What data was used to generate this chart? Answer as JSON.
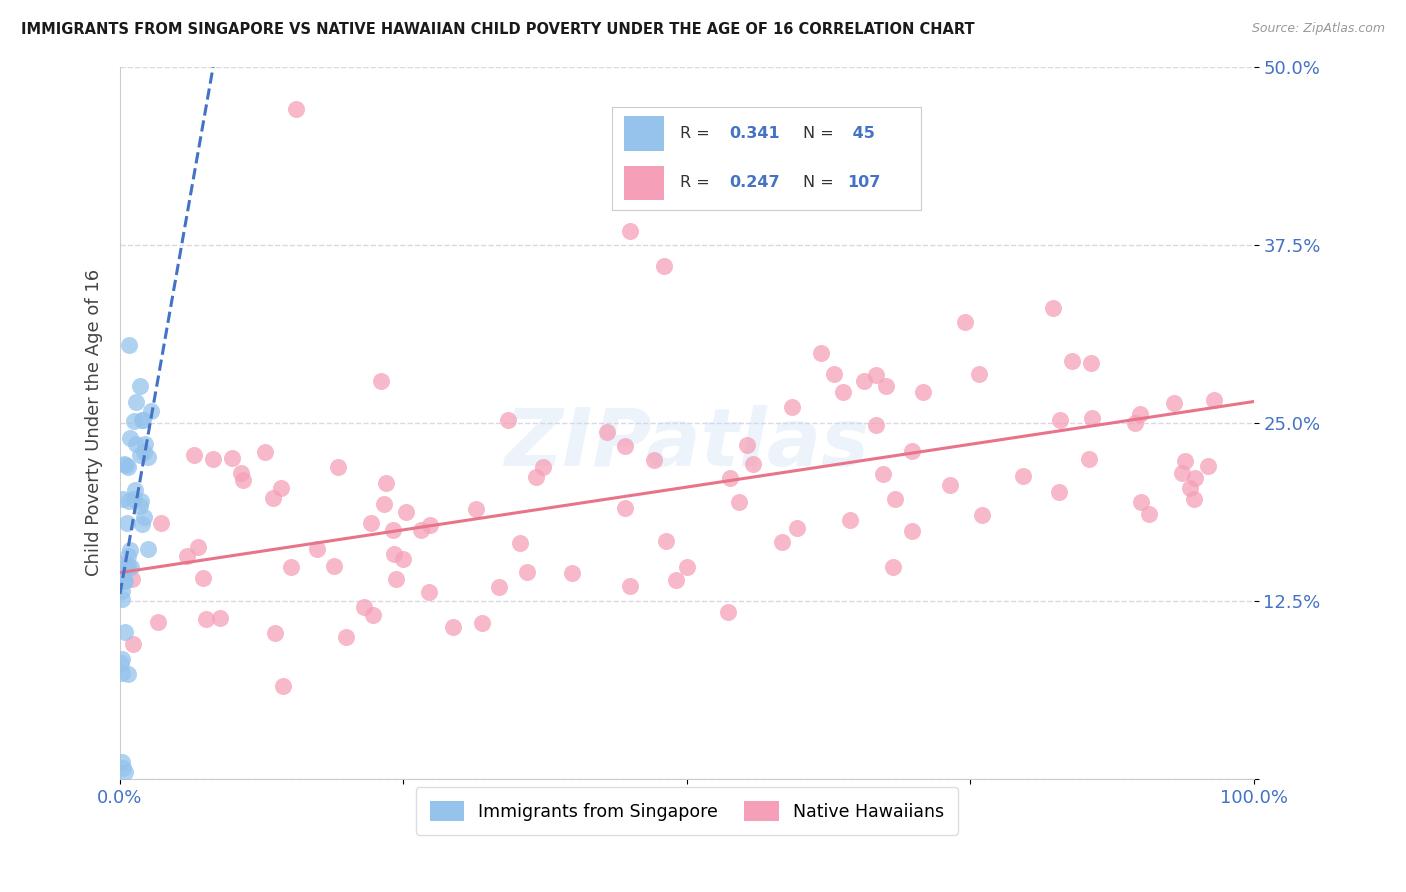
{
  "title": "IMMIGRANTS FROM SINGAPORE VS NATIVE HAWAIIAN CHILD POVERTY UNDER THE AGE OF 16 CORRELATION CHART",
  "source": "Source: ZipAtlas.com",
  "ylabel": "Child Poverty Under the Age of 16",
  "xlim": [
    0,
    1.0
  ],
  "ylim": [
    0,
    0.5
  ],
  "yticks": [
    0.0,
    0.125,
    0.25,
    0.375,
    0.5
  ],
  "ytick_labels": [
    "",
    "12.5%",
    "25.0%",
    "37.5%",
    "50.0%"
  ],
  "xtick_labels_left": "0.0%",
  "xtick_labels_right": "100.0%",
  "legend_r_blue": "0.341",
  "legend_n_blue": " 45",
  "legend_r_pink": "0.247",
  "legend_n_pink": "107",
  "legend_label_blue": "Immigrants from Singapore",
  "legend_label_pink": "Native Hawaiians",
  "blue_color": "#95C3EC",
  "pink_color": "#F5A0B8",
  "trend_blue_color": "#4472C4",
  "trend_pink_color": "#E8748A",
  "background_color": "#ffffff",
  "grid_color": "#D8D8E8",
  "blue_trend_slope": 4.5,
  "blue_trend_intercept": 0.13,
  "pink_trend_slope": 0.12,
  "pink_trend_intercept": 0.145
}
